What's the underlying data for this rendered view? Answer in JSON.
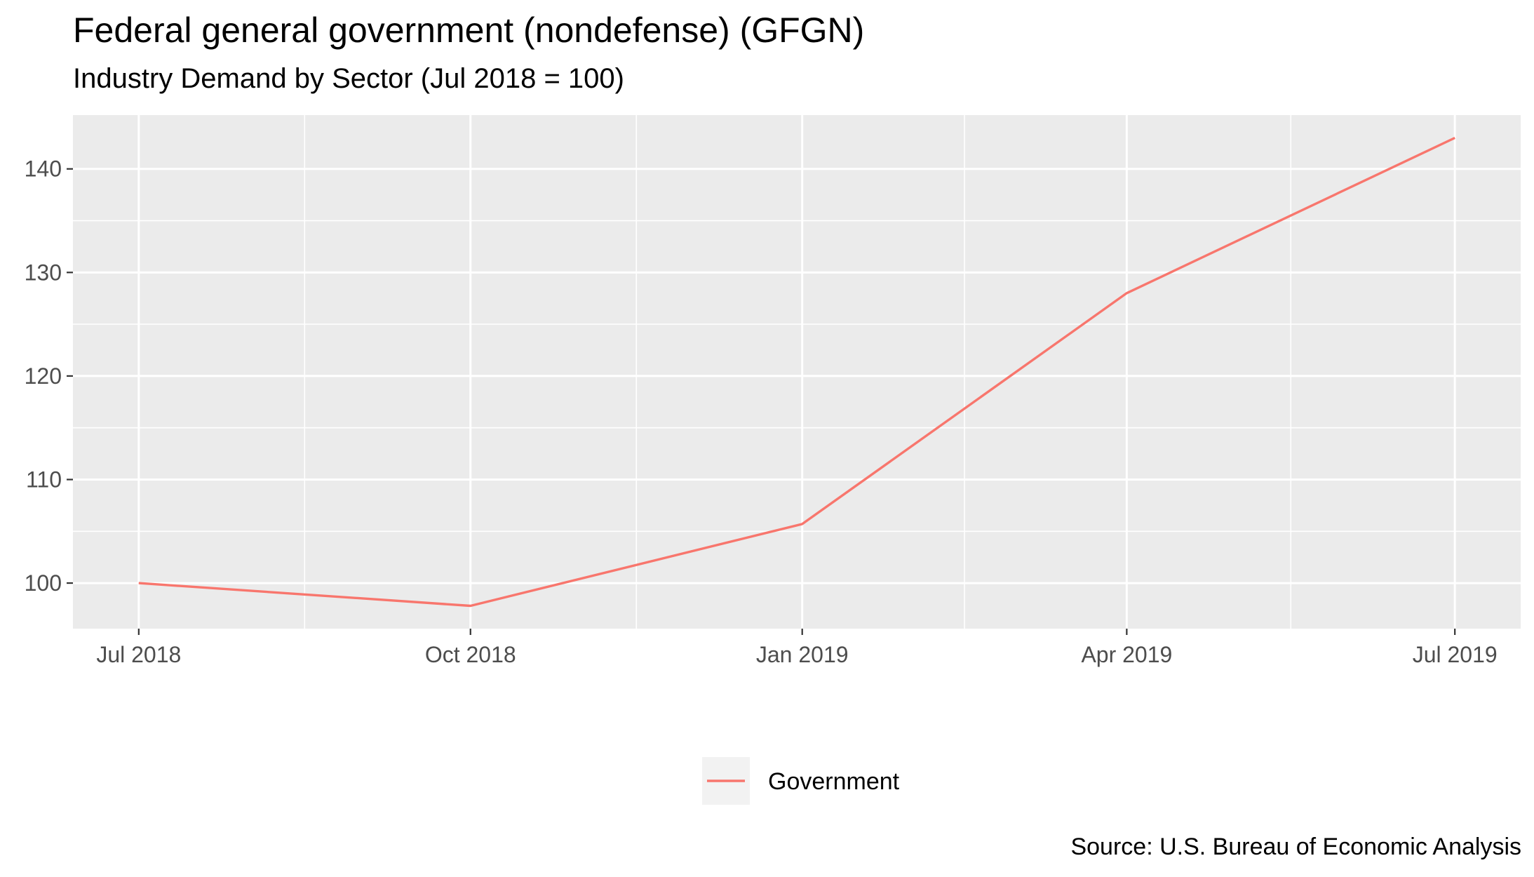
{
  "chart_data": {
    "type": "line",
    "title": "Federal general government (nondefense) (GFGN)",
    "subtitle": "Industry Demand by Sector (Jul 2018 = 100)",
    "caption": "Source: U.S. Bureau of Economic Analysis",
    "x": [
      "2018-07-01",
      "2018-10-01",
      "2019-01-01",
      "2019-04-01",
      "2019-07-01"
    ],
    "x_tick_labels": [
      "Jul 2018",
      "Oct 2018",
      "Jan 2019",
      "Apr 2019",
      "Jul 2019"
    ],
    "y_ticks": [
      100,
      110,
      120,
      130,
      140
    ],
    "ylim": [
      95.6,
      145.2
    ],
    "grid": true,
    "legend_position": "bottom",
    "series": [
      {
        "name": "Government",
        "color": "#F8766D",
        "values": [
          100,
          97.8,
          105.7,
          128.0,
          143.0
        ]
      }
    ]
  }
}
